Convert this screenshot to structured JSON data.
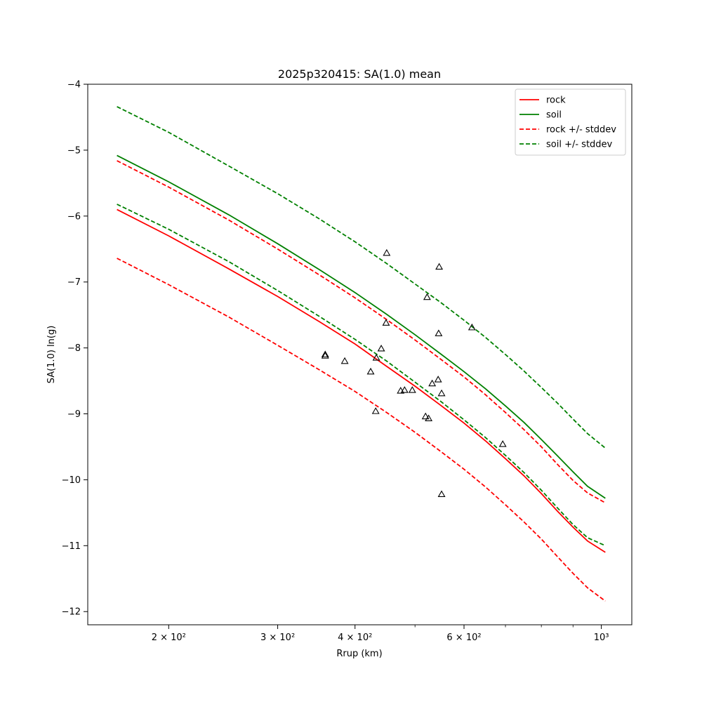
{
  "chart_data": {
    "type": "line",
    "title": "2025p320415: SA(1.0) mean",
    "xlabel": "Rrup (km)",
    "ylabel": "SA(1.0) ln(g)",
    "xscale": "log",
    "xlim": [
      148,
      1120
    ],
    "ylim": [
      -12.2,
      -4.0
    ],
    "x_ticks": [
      {
        "value": 200,
        "label": "2 × 10²"
      },
      {
        "value": 300,
        "label": "3 × 10²"
      },
      {
        "value": 400,
        "label": "4 × 10²"
      },
      {
        "value": 600,
        "label": "6 × 10²"
      },
      {
        "value": 1000,
        "label": "10³"
      }
    ],
    "x_minor_ticks": [
      500,
      700,
      800,
      900
    ],
    "y_ticks": [
      {
        "value": -4,
        "label": "−4"
      },
      {
        "value": -5,
        "label": "−5"
      },
      {
        "value": -6,
        "label": "−6"
      },
      {
        "value": -7,
        "label": "−7"
      },
      {
        "value": -8,
        "label": "−8"
      },
      {
        "value": -9,
        "label": "−9"
      },
      {
        "value": -10,
        "label": "−10"
      },
      {
        "value": -11,
        "label": "−11"
      },
      {
        "value": -12,
        "label": "−12"
      }
    ],
    "grid": false,
    "legend_position": "top-right",
    "x": [
      165,
      200,
      250,
      300,
      350,
      400,
      450,
      500,
      550,
      600,
      650,
      700,
      750,
      800,
      850,
      900,
      950,
      1015
    ],
    "series": [
      {
        "name": "rock",
        "color": "#ff0000",
        "style": "solid",
        "values": [
          -5.9,
          -6.3,
          -6.8,
          -7.22,
          -7.6,
          -7.94,
          -8.28,
          -8.58,
          -8.87,
          -9.14,
          -9.41,
          -9.68,
          -9.94,
          -10.21,
          -10.48,
          -10.72,
          -10.93,
          -11.1
        ]
      },
      {
        "name": "soil",
        "color": "#008000",
        "style": "solid",
        "values": [
          -5.08,
          -5.48,
          -5.98,
          -6.42,
          -6.81,
          -7.16,
          -7.49,
          -7.8,
          -8.09,
          -8.36,
          -8.62,
          -8.88,
          -9.13,
          -9.39,
          -9.64,
          -9.88,
          -10.1,
          -10.28
        ]
      },
      {
        "name": "rock +/- stddev",
        "color": "#ff0000",
        "style": "dashed",
        "values": [
          -5.16,
          -5.56,
          -6.06,
          -6.5,
          -6.89,
          -7.24,
          -7.57,
          -7.88,
          -8.17,
          -8.44,
          -8.71,
          -8.98,
          -9.24,
          -9.5,
          -9.77,
          -10.01,
          -10.2,
          -10.35
        ]
      },
      {
        "name": "",
        "color": "#ff0000",
        "style": "dashed",
        "values": [
          -6.64,
          -7.04,
          -7.53,
          -7.96,
          -8.33,
          -8.66,
          -8.98,
          -9.28,
          -9.57,
          -9.84,
          -10.11,
          -10.38,
          -10.64,
          -10.9,
          -11.17,
          -11.42,
          -11.64,
          -11.84
        ]
      },
      {
        "name": "soil +/- stddev",
        "color": "#008000",
        "style": "dashed",
        "values": [
          -4.34,
          -4.73,
          -5.24,
          -5.66,
          -6.04,
          -6.39,
          -6.72,
          -7.03,
          -7.31,
          -7.58,
          -7.84,
          -8.1,
          -8.35,
          -8.6,
          -8.84,
          -9.08,
          -9.3,
          -9.52
        ]
      },
      {
        "name": "",
        "color": "#008000",
        "style": "dashed",
        "values": [
          -5.82,
          -6.2,
          -6.69,
          -7.13,
          -7.52,
          -7.87,
          -8.2,
          -8.52,
          -8.81,
          -9.09,
          -9.36,
          -9.63,
          -9.89,
          -10.16,
          -10.43,
          -10.68,
          -10.88,
          -11.0
        ]
      }
    ],
    "observations": {
      "marker": "triangle",
      "color": "#000000",
      "points": [
        {
          "x": 358,
          "y": -8.1
        },
        {
          "x": 358,
          "y": -8.12
        },
        {
          "x": 385,
          "y": -8.2
        },
        {
          "x": 424,
          "y": -8.36
        },
        {
          "x": 433,
          "y": -8.15
        },
        {
          "x": 432,
          "y": -8.96
        },
        {
          "x": 441,
          "y": -8.01
        },
        {
          "x": 449,
          "y": -7.62
        },
        {
          "x": 450,
          "y": -6.56
        },
        {
          "x": 474,
          "y": -8.65
        },
        {
          "x": 481,
          "y": -8.64
        },
        {
          "x": 495,
          "y": -8.64
        },
        {
          "x": 520,
          "y": -9.04
        },
        {
          "x": 523,
          "y": -7.23
        },
        {
          "x": 526,
          "y": -9.07
        },
        {
          "x": 533,
          "y": -8.54
        },
        {
          "x": 545,
          "y": -8.48
        },
        {
          "x": 546,
          "y": -7.78
        },
        {
          "x": 547,
          "y": -6.77
        },
        {
          "x": 552,
          "y": -8.69
        },
        {
          "x": 552,
          "y": -10.22
        },
        {
          "x": 618,
          "y": -7.69
        },
        {
          "x": 693,
          "y": -9.46
        }
      ]
    }
  }
}
